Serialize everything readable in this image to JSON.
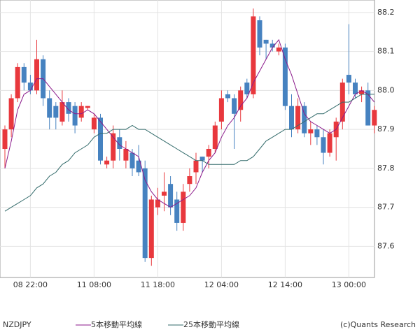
{
  "chart_data": {
    "type": "candlestick",
    "symbol": "NZDJPY",
    "credit": "(c)Quants Research",
    "categories": [
      null,
      null,
      null,
      null,
      "08 22:00",
      null,
      null,
      null,
      null,
      null,
      null,
      null,
      null,
      null,
      "11 08:00",
      null,
      null,
      null,
      null,
      null,
      null,
      null,
      null,
      null,
      "11 18:00",
      null,
      null,
      null,
      null,
      null,
      null,
      null,
      null,
      null,
      "12 04:00",
      null,
      null,
      null,
      null,
      null,
      null,
      null,
      null,
      null,
      "12 14:00",
      null,
      null,
      null,
      null,
      null,
      null,
      null,
      null,
      null,
      "13 00:00",
      null,
      null,
      null,
      null
    ],
    "open": [
      87.85,
      87.9,
      87.98,
      88.06,
      88.02,
      88.0,
      88.08,
      87.98,
      87.96,
      87.92,
      87.97,
      87.96,
      87.93,
      87.955,
      87.9,
      87.93,
      87.81,
      87.82,
      87.88,
      87.82,
      87.84,
      87.82,
      87.8,
      87.57,
      87.7,
      87.73,
      87.76,
      87.72,
      87.66,
      87.76,
      87.79,
      87.83,
      87.83,
      87.85,
      87.92,
      87.99,
      87.98,
      87.95,
      88.02,
      87.99,
      88.18,
      88.13,
      88.12,
      88.1,
      88.11,
      87.96,
      87.9,
      87.96,
      87.89,
      87.9,
      87.88,
      87.84,
      87.88,
      87.92,
      88.04,
      88.02,
      87.99,
      88.0,
      87.91
    ],
    "high": [
      87.91,
      87.99,
      88.07,
      88.07,
      88.04,
      88.13,
      88.09,
      88.0,
      87.97,
      88.0,
      87.98,
      87.97,
      87.97,
      87.96,
      87.94,
      87.94,
      87.83,
      87.91,
      87.9,
      87.87,
      87.85,
      87.86,
      87.82,
      87.73,
      87.75,
      87.79,
      87.78,
      87.74,
      87.76,
      87.8,
      87.84,
      87.83,
      87.86,
      87.92,
      88.0,
      88.0,
      87.99,
      88.01,
      88.03,
      88.21,
      88.19,
      88.13,
      88.13,
      88.12,
      88.12,
      87.99,
      87.98,
      87.97,
      87.92,
      87.91,
      87.9,
      87.9,
      87.93,
      88.03,
      88.17,
      88.03,
      88.01,
      88.02,
      87.96
    ],
    "low": [
      87.8,
      87.88,
      87.97,
      88.0,
      87.99,
      87.99,
      87.96,
      87.9,
      87.9,
      87.91,
      87.92,
      87.89,
      87.92,
      87.95,
      87.89,
      87.81,
      87.8,
      87.8,
      87.82,
      87.8,
      87.78,
      87.78,
      87.56,
      87.55,
      87.68,
      87.69,
      87.68,
      87.64,
      87.64,
      87.74,
      87.76,
      87.79,
      87.8,
      87.84,
      87.9,
      87.97,
      87.85,
      87.92,
      87.98,
      87.98,
      88.09,
      88.08,
      88.1,
      88.09,
      87.95,
      87.88,
      87.89,
      87.88,
      87.86,
      87.86,
      87.81,
      87.83,
      87.82,
      87.9,
      87.99,
      87.98,
      87.97,
      87.91,
      87.89
    ],
    "close": [
      87.9,
      87.98,
      88.06,
      88.02,
      88.0,
      88.08,
      87.98,
      87.93,
      87.93,
      87.97,
      87.94,
      87.91,
      87.96,
      87.96,
      87.93,
      87.82,
      87.82,
      87.89,
      87.85,
      87.85,
      87.8,
      87.79,
      87.57,
      87.72,
      87.72,
      87.74,
      87.7,
      87.66,
      87.74,
      87.78,
      87.82,
      87.82,
      87.85,
      87.91,
      87.98,
      87.98,
      87.94,
      88.0,
      87.99,
      88.19,
      88.11,
      88.12,
      88.11,
      88.11,
      87.96,
      87.9,
      87.96,
      87.89,
      87.9,
      87.88,
      87.84,
      87.89,
      87.92,
      88.02,
      88.02,
      87.99,
      88.0,
      87.91,
      87.95
    ],
    "up_color": "#e8383d",
    "down_color": "#4682c0",
    "series": [
      {
        "name": "5本移動平均線",
        "color": "#8b1a8b",
        "values": [
          87.8,
          87.87,
          87.95,
          87.99,
          88.0,
          88.03,
          88.03,
          88.01,
          87.99,
          87.97,
          87.95,
          87.94,
          87.94,
          87.95,
          87.94,
          87.92,
          87.9,
          87.88,
          87.86,
          87.85,
          87.84,
          87.83,
          87.77,
          87.74,
          87.72,
          87.71,
          87.7,
          87.71,
          87.72,
          87.73,
          87.75,
          87.79,
          87.82,
          87.84,
          87.88,
          87.91,
          87.93,
          87.96,
          87.98,
          88.02,
          88.05,
          88.08,
          88.11,
          88.13,
          88.08,
          88.04,
          87.99,
          87.94,
          87.92,
          87.91,
          87.9,
          87.89,
          87.9,
          87.93,
          87.96,
          87.99,
          88.0,
          87.99,
          87.97
        ]
      },
      {
        "name": "25本移動平均線",
        "color": "#336b6b",
        "values": [
          87.69,
          87.7,
          87.71,
          87.72,
          87.73,
          87.75,
          87.76,
          87.78,
          87.79,
          87.81,
          87.82,
          87.84,
          87.85,
          87.86,
          87.88,
          87.89,
          87.89,
          87.9,
          87.9,
          87.9,
          87.91,
          87.9,
          87.9,
          87.89,
          87.88,
          87.87,
          87.86,
          87.85,
          87.84,
          87.83,
          87.82,
          87.82,
          87.81,
          87.81,
          87.81,
          87.81,
          87.81,
          87.82,
          87.82,
          87.83,
          87.85,
          87.87,
          87.88,
          87.89,
          87.9,
          87.9,
          87.91,
          87.92,
          87.93,
          87.94,
          87.94,
          87.95,
          87.96,
          87.97,
          87.97,
          87.98,
          87.99,
          87.99,
          87.99
        ]
      }
    ],
    "ylim": [
      87.52,
      88.232
    ],
    "yticks": [
      87.6,
      87.7,
      87.8,
      87.9,
      {
        "value": 88,
        "label": "88.0"
      },
      88.1,
      88.2
    ],
    "grid": true
  }
}
